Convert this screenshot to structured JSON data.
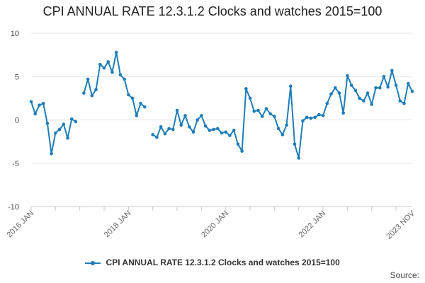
{
  "title": "CPI ANNUAL RATE 12.3.1.2 Clocks and watches 2015=100",
  "source_label": "Source:",
  "colors": {
    "series": "#1f7db8",
    "grid": "#e6e6e6",
    "axis": "#cccccc"
  },
  "chart_data": {
    "type": "line",
    "title": "CPI ANNUAL RATE 12.3.1.2 Clocks and watches 2015=100",
    "xlabel": "",
    "ylabel": "",
    "ylim": [
      -10,
      10
    ],
    "yticks": [
      "10",
      "5",
      "0",
      "-5",
      "-10"
    ],
    "yticks_values": [
      10,
      5,
      0,
      -5,
      -10
    ],
    "xticks": [
      "2016 JAN",
      "2018 JAN",
      "2020 JAN",
      "2022 JAN",
      "2023 NOV"
    ],
    "xticks_index": [
      0,
      24,
      48,
      72,
      94
    ],
    "grid": true,
    "legend": "bottom",
    "series": [
      {
        "name": "CPI ANNUAL RATE 12.3.1.2 Clocks and watches 2015=100",
        "start": "2016 JAN",
        "values": [
          2.1,
          0.7,
          1.7,
          1.9,
          -0.4,
          -3.9,
          -1.5,
          -1.1,
          -0.5,
          -2.1,
          0.1,
          -0.2,
          null,
          3.1,
          4.7,
          2.8,
          3.5,
          6.4,
          6.0,
          6.7,
          5.5,
          7.8,
          5.2,
          4.7,
          2.9,
          2.5,
          0.5,
          1.9,
          1.5,
          null,
          -1.7,
          -2.0,
          -0.8,
          -1.6,
          -1.0,
          -1.1,
          1.1,
          -0.6,
          0.5,
          -0.8,
          -1.4,
          0.0,
          0.5,
          -0.7,
          -1.2,
          -1.1,
          -1.0,
          -1.5,
          -1.4,
          -1.8,
          -1.2,
          -2.8,
          -3.6,
          3.6,
          2.5,
          1.0,
          1.1,
          0.4,
          1.3,
          0.7,
          0.4,
          -1.0,
          -1.7,
          -0.6,
          3.9,
          -2.8,
          -4.4,
          -0.1,
          0.3,
          0.2,
          0.3,
          0.6,
          0.5,
          1.9,
          3.0,
          3.7,
          3.1,
          0.8,
          5.1,
          4.0,
          3.4,
          2.5,
          2.2,
          3.1,
          1.8,
          3.7,
          3.7,
          5.0,
          3.8,
          5.7,
          4.0,
          2.2,
          1.9,
          4.2,
          3.3
        ]
      }
    ]
  }
}
